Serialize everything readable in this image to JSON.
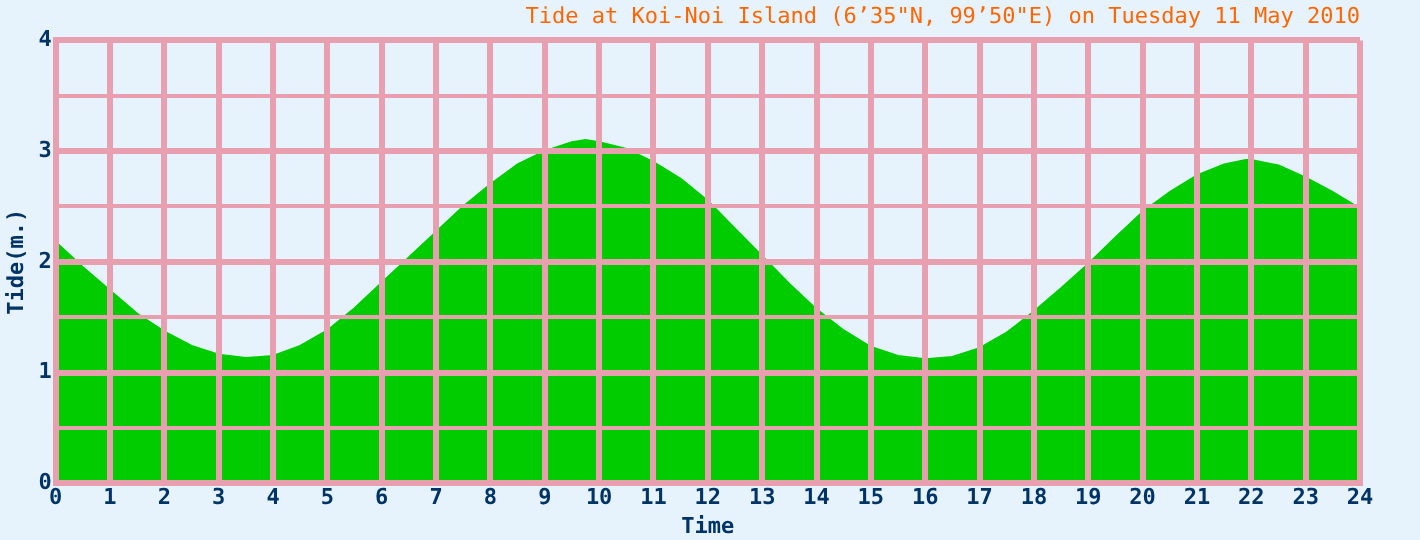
{
  "chart_data": {
    "type": "area",
    "title": "Tide at Koi-Noi Island (6’35\"N, 99’50\"E) on Tuesday 11 May 2010",
    "xlabel": "Time",
    "ylabel": "Tide(m.)",
    "x": [
      0,
      0.5,
      1,
      1.5,
      2,
      2.5,
      3,
      3.5,
      4,
      4.5,
      5,
      5.5,
      6,
      6.5,
      7,
      7.5,
      8,
      8.5,
      9,
      9.5,
      9.75,
      10,
      10.5,
      11,
      11.5,
      12,
      12.5,
      13,
      13.5,
      14,
      14.5,
      15,
      15.5,
      16,
      16.5,
      17,
      17.5,
      18,
      18.5,
      19,
      19.5,
      20,
      20.5,
      21,
      21.5,
      21.9,
      22,
      22.5,
      23,
      23.5,
      24
    ],
    "series": [
      {
        "color": "#00cc00",
        "values": [
          2.18,
          1.95,
          1.74,
          1.53,
          1.37,
          1.24,
          1.16,
          1.13,
          1.15,
          1.24,
          1.38,
          1.58,
          1.81,
          2.04,
          2.27,
          2.5,
          2.7,
          2.88,
          3.0,
          3.08,
          3.1,
          3.08,
          3.02,
          2.9,
          2.75,
          2.55,
          2.3,
          2.05,
          1.8,
          1.57,
          1.38,
          1.23,
          1.15,
          1.12,
          1.14,
          1.22,
          1.36,
          1.55,
          1.76,
          1.98,
          2.22,
          2.45,
          2.63,
          2.78,
          2.88,
          2.92,
          2.92,
          2.87,
          2.76,
          2.63,
          2.48
        ]
      }
    ],
    "xlim": [
      0,
      24
    ],
    "xticks": [
      0,
      1,
      2,
      3,
      4,
      5,
      6,
      7,
      8,
      9,
      10,
      11,
      12,
      13,
      14,
      15,
      16,
      17,
      18,
      19,
      20,
      21,
      22,
      23,
      24
    ],
    "ylim": [
      0,
      4
    ],
    "yticks": [
      0,
      {
        "value": 0.5,
        "label": null
      },
      1,
      {
        "value": 1.5,
        "label": null
      },
      2,
      {
        "value": 2.5,
        "label": null
      },
      3,
      {
        "value": 3.5,
        "label": null
      },
      4
    ],
    "grid": true,
    "legend": false
  }
}
